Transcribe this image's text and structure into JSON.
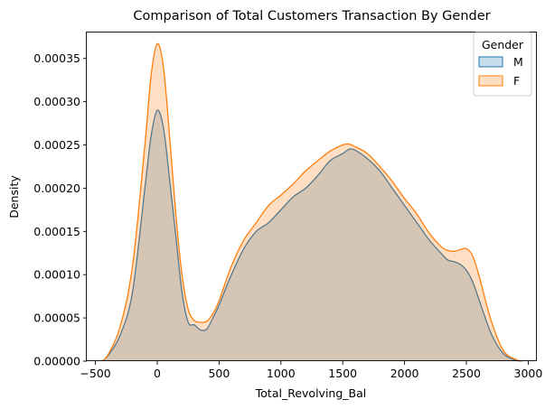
{
  "chart_data": {
    "type": "area",
    "title": "Comparison of Total Customers Transaction By Gender",
    "xlabel": "Total_Revolving_Bal",
    "ylabel": "Density",
    "xlim": [
      -570,
      3070
    ],
    "ylim": [
      0,
      0.00038
    ],
    "x_ticks": [
      -500,
      0,
      500,
      1000,
      1500,
      2000,
      2500,
      3000
    ],
    "x_tick_labels": [
      "−500",
      "0",
      "500",
      "1000",
      "1500",
      "2000",
      "2500",
      "3000"
    ],
    "y_ticks": [
      0,
      5e-05,
      0.0001,
      0.00015,
      0.0002,
      0.00025,
      0.0003,
      0.00035
    ],
    "y_tick_labels": [
      "0.00000",
      "0.00005",
      "0.00010",
      "0.00015",
      "0.00020",
      "0.00025",
      "0.00030",
      "0.00035"
    ],
    "grid": false,
    "legend": {
      "title": "Gender",
      "placement": "top-right"
    },
    "series": [
      {
        "name": "M",
        "color": "#1f77b4",
        "fill": "#1f77b4",
        "x": [
          -450,
          -400,
          -300,
          -200,
          -100,
          -50,
          0,
          50,
          100,
          150,
          200,
          250,
          300,
          350,
          400,
          450,
          500,
          600,
          700,
          800,
          900,
          1000,
          1100,
          1200,
          1300,
          1400,
          1500,
          1550,
          1600,
          1700,
          1800,
          1900,
          2000,
          2100,
          2200,
          2300,
          2350,
          2400,
          2450,
          2500,
          2550,
          2600,
          2700,
          2800,
          2900,
          2950
        ],
        "y": [
          2e-07,
          6e-06,
          3e-05,
          8e-05,
          0.0002,
          0.00026,
          0.00029,
          0.00027,
          0.00021,
          0.000145,
          8e-05,
          4.5e-05,
          4.2e-05,
          3.6e-05,
          3.7e-05,
          5e-05,
          6.5e-05,
          0.0001,
          0.00013,
          0.00015,
          0.00016,
          0.000175,
          0.00019,
          0.0002,
          0.000215,
          0.000232,
          0.00024,
          0.000245,
          0.000244,
          0.000234,
          0.00022,
          0.0002,
          0.00018,
          0.00016,
          0.00014,
          0.000124,
          0.000117,
          0.000115,
          0.000112,
          0.000105,
          9.2e-05,
          7.2e-05,
          3.2e-05,
          8.5e-06,
          1e-06,
          0.0
        ]
      },
      {
        "name": "F",
        "color": "#ff7f0e",
        "fill": "#ff7f0e",
        "x": [
          -450,
          -400,
          -300,
          -200,
          -100,
          -50,
          0,
          50,
          100,
          150,
          200,
          250,
          300,
          350,
          400,
          450,
          500,
          600,
          700,
          800,
          900,
          1000,
          1100,
          1200,
          1300,
          1400,
          1500,
          1550,
          1600,
          1700,
          1800,
          1900,
          2000,
          2100,
          2200,
          2300,
          2350,
          2400,
          2450,
          2500,
          2550,
          2600,
          2700,
          2800,
          2900,
          2950
        ],
        "y": [
          2e-07,
          7e-06,
          4e-05,
          0.00011,
          0.00025,
          0.00033,
          0.000367,
          0.00034,
          0.00026,
          0.00017,
          0.0001,
          6e-05,
          4.7e-05,
          4.5e-05,
          4.6e-05,
          5.5e-05,
          7e-05,
          0.00011,
          0.00014,
          0.00016,
          0.00018,
          0.000192,
          0.000205,
          0.00022,
          0.000232,
          0.000243,
          0.00025,
          0.000251,
          0.000248,
          0.00024,
          0.000225,
          0.000208,
          0.000188,
          0.00017,
          0.000148,
          0.000132,
          0.000128,
          0.000127,
          0.000129,
          0.00013,
          0.000122,
          0.0001,
          4.7e-05,
          1.2e-05,
          2e-06,
          0.0
        ]
      }
    ]
  }
}
